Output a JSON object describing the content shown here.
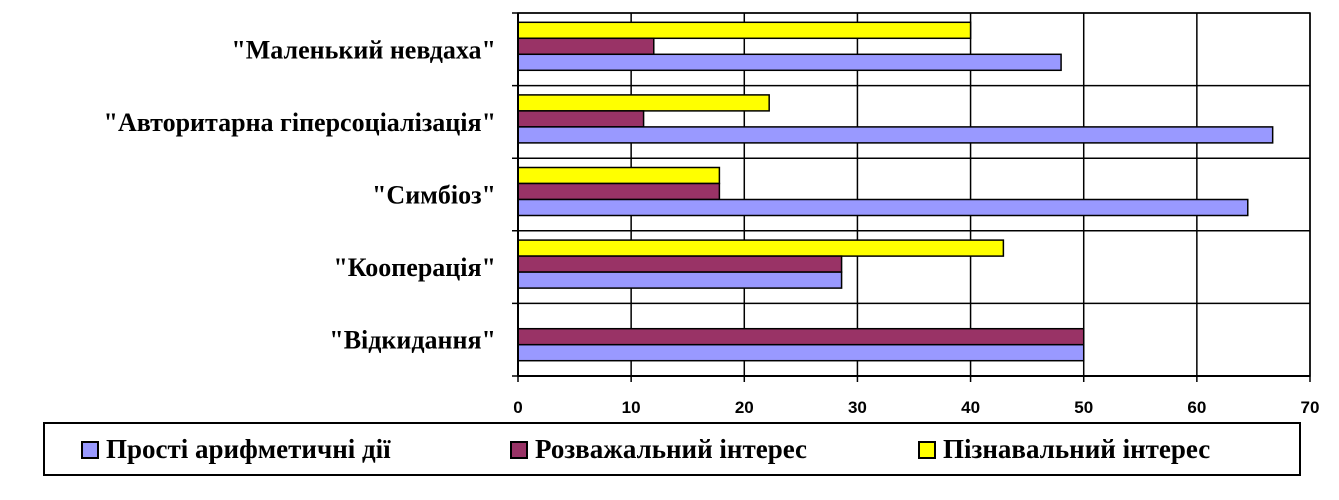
{
  "chart_data": {
    "type": "bar",
    "orientation": "horizontal",
    "categories": [
      "\"Маленький невдаха\"",
      "\"Авторитарна гіперсоціалізація\"",
      "\"Симбіоз\"",
      "\"Кооперація\"",
      "\"Відкидання\""
    ],
    "series": [
      {
        "name": "Прості арифметичні дії",
        "color": "#9999FF",
        "values": [
          48,
          66.7,
          64.5,
          28.6,
          50
        ]
      },
      {
        "name": "Розважальний інтерес",
        "color": "#993366",
        "values": [
          12,
          11.1,
          17.8,
          28.6,
          50
        ]
      },
      {
        "name": "Пізнавальний інтерес",
        "color": "#FFFF00",
        "values": [
          40,
          22.2,
          17.8,
          42.9,
          0
        ]
      }
    ],
    "xlim": [
      0,
      70
    ],
    "xticks": [
      "0",
      "10",
      "20",
      "30",
      "40",
      "50",
      "60",
      "70"
    ],
    "grid": true,
    "legend_position": "bottom"
  }
}
